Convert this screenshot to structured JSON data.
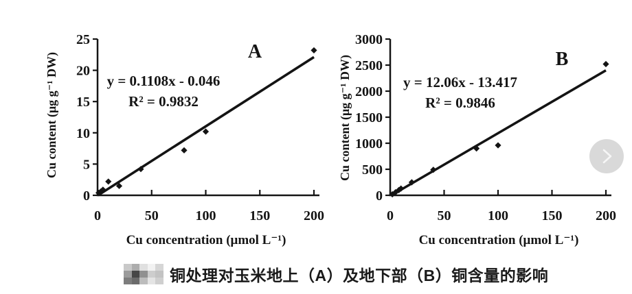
{
  "figure": {
    "caption": {
      "redacted_label": "pixelated-mosaic",
      "mosaic_colors": [
        [
          "#c9c9c9",
          "#adadad",
          "#e0e0e0",
          "#f2f2f2",
          "#d6d6d6"
        ],
        [
          "#9b9b9b",
          "#474747",
          "#909090",
          "#cdcdcd",
          "#c3c3c3"
        ],
        [
          "#7d7d7d",
          "#6b6b6b",
          "#bcbcbc",
          "#e4e4e4",
          "#cfcfcf"
        ]
      ],
      "text": "铜处理对玉米地上（A）及地下部（B）铜含量的影响"
    },
    "nav": {
      "next_icon": "chevron-right",
      "button_color": "#d9d9d9",
      "icon_color": "#f6f6f6"
    },
    "ink_color": "#141414"
  },
  "chart_data": [
    {
      "type": "scatter",
      "panel_label": "A",
      "equation": "y = 0.1108x - 0.046",
      "r_squared": "R² = 0.9832",
      "slope": 0.1108,
      "intercept": -0.046,
      "xlabel": "Cu concentration (μmol L⁻¹)",
      "ylabel": "Cu content (μg g⁻¹ DW)",
      "xlim": [
        0,
        200
      ],
      "ylim": [
        0,
        25
      ],
      "xticks": [
        0,
        50,
        100,
        150,
        200
      ],
      "yticks": [
        0,
        5,
        10,
        15,
        20,
        25
      ],
      "grid": false,
      "legend": "none",
      "marker": "diamond",
      "points": {
        "x": [
          1,
          3,
          5,
          10,
          20,
          40,
          80,
          100,
          200
        ],
        "y": [
          0.4,
          0.6,
          0.9,
          2.2,
          1.5,
          4.2,
          7.2,
          10.2,
          23.2
        ]
      }
    },
    {
      "type": "scatter",
      "panel_label": "B",
      "equation": "y = 12.06x - 13.417",
      "r_squared": "R² = 0.9846",
      "slope": 12.06,
      "intercept": -13.417,
      "xlabel": "Cu concentration (μmol L⁻¹)",
      "ylabel": "Cu content (μg g⁻¹ DW)",
      "xlim": [
        0,
        200
      ],
      "ylim": [
        0,
        3000
      ],
      "xticks": [
        0,
        50,
        100,
        150,
        200
      ],
      "yticks": [
        0,
        500,
        1000,
        1500,
        2000,
        2500,
        3000
      ],
      "grid": false,
      "legend": "none",
      "marker": "diamond",
      "points": {
        "x": [
          2,
          5,
          8,
          10,
          20,
          40,
          80,
          100,
          200
        ],
        "y": [
          20,
          60,
          100,
          130,
          250,
          490,
          900,
          960,
          2520
        ]
      }
    }
  ]
}
